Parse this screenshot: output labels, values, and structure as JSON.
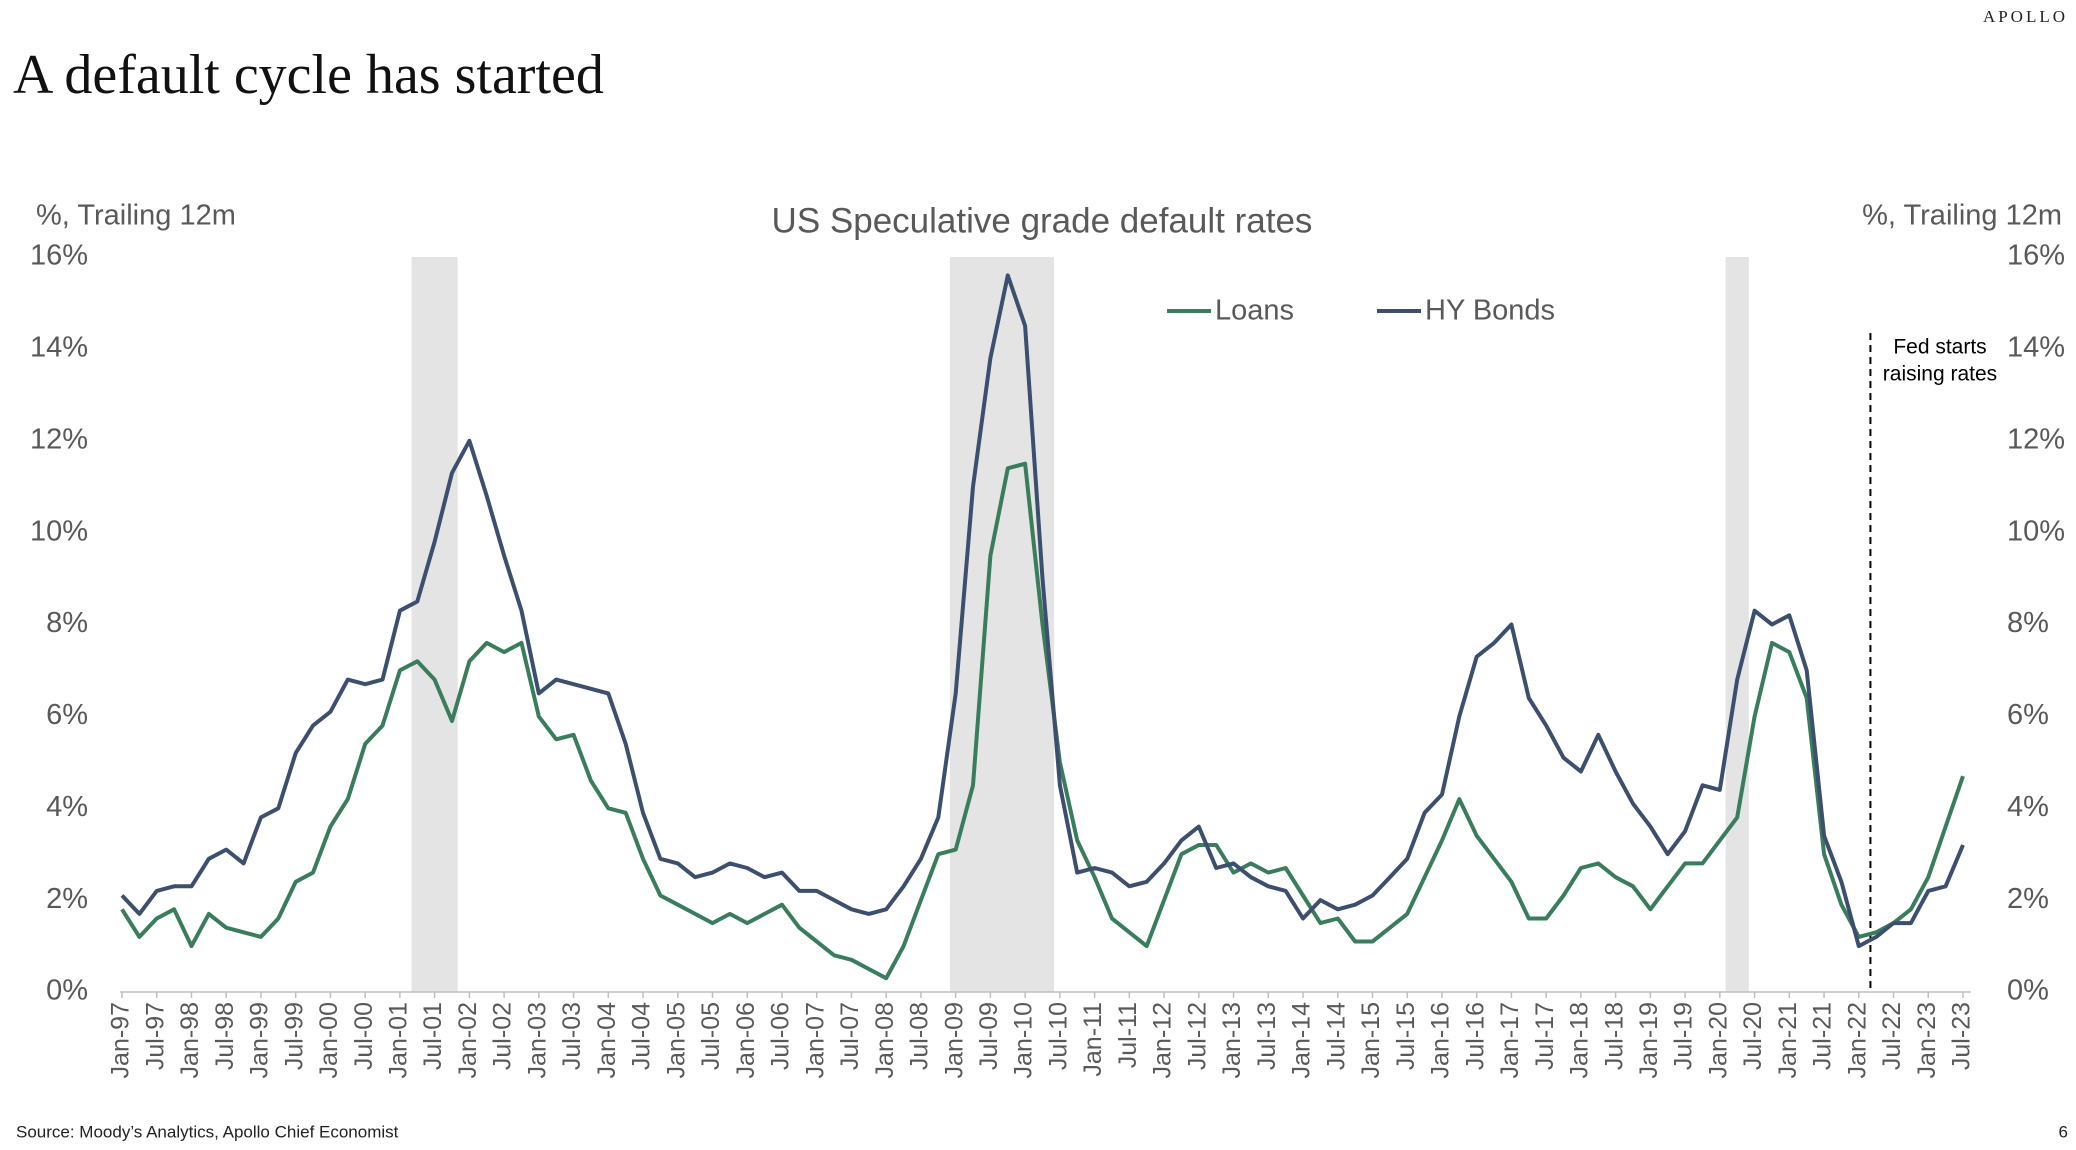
{
  "brand": "APOLLO",
  "headline": "A default cycle has started",
  "source": "Source: Moody’s Analytics, Apollo Chief Economist",
  "page_number": "6",
  "chart_data": {
    "type": "line",
    "title": "US Speculative grade default rates",
    "ylabel": "%, Trailing 12m",
    "y2label": "%, Trailing 12m",
    "categories": [
      "Jan-97",
      null,
      "Jul-97",
      null,
      "Jan-98",
      null,
      "Jul-98",
      null,
      "Jan-99",
      null,
      "Jul-99",
      null,
      "Jan-00",
      null,
      "Jul-00",
      null,
      "Jan-01",
      null,
      "Jul-01",
      null,
      "Jan-02",
      null,
      "Jul-02",
      null,
      "Jan-03",
      null,
      "Jul-03",
      null,
      "Jan-04",
      null,
      "Jul-04",
      null,
      "Jan-05",
      null,
      "Jul-05",
      null,
      "Jan-06",
      null,
      "Jul-06",
      null,
      "Jan-07",
      null,
      "Jul-07",
      null,
      "Jan-08",
      null,
      "Jul-08",
      null,
      "Jan-09",
      null,
      "Jul-09",
      null,
      "Jan-10",
      null,
      "Jul-10",
      null,
      "Jan-11",
      null,
      "Jul-11",
      null,
      "Jan-12",
      null,
      "Jul-12",
      null,
      "Jan-13",
      null,
      "Jul-13",
      null,
      "Jan-14",
      null,
      "Jul-14",
      null,
      "Jan-15",
      null,
      "Jul-15",
      null,
      "Jan-16",
      null,
      "Jul-16",
      null,
      "Jan-17",
      null,
      "Jul-17",
      null,
      "Jan-18",
      null,
      "Jul-18",
      null,
      "Jan-19",
      null,
      "Jul-19",
      null,
      "Jan-20",
      null,
      "Jul-20",
      null,
      "Jan-21",
      null,
      "Jul-21",
      null,
      "Jan-22",
      null,
      "Jul-22",
      null,
      "Jan-23",
      null,
      "Jul-23"
    ],
    "series": [
      {
        "name": "Loans",
        "color": "#3a7d5c",
        "values": [
          1.8,
          1.2,
          1.6,
          1.8,
          1.0,
          1.7,
          1.4,
          1.3,
          1.2,
          1.6,
          2.4,
          2.6,
          3.6,
          4.2,
          5.4,
          5.8,
          7.0,
          7.2,
          6.8,
          5.9,
          7.2,
          7.6,
          7.4,
          7.6,
          6.0,
          5.5,
          5.6,
          4.6,
          4.0,
          3.9,
          2.9,
          2.1,
          1.9,
          1.7,
          1.5,
          1.7,
          1.5,
          1.7,
          1.9,
          1.4,
          1.1,
          0.8,
          0.7,
          0.5,
          0.3,
          1.0,
          2.0,
          3.0,
          3.1,
          4.5,
          9.5,
          11.4,
          11.5,
          8.0,
          5.0,
          3.3,
          2.5,
          1.6,
          1.3,
          1.0,
          2.0,
          3.0,
          3.2,
          3.2,
          2.6,
          2.8,
          2.6,
          2.7,
          2.1,
          1.5,
          1.6,
          1.1,
          1.1,
          1.4,
          1.7,
          2.5,
          3.3,
          4.2,
          3.4,
          2.9,
          2.4,
          1.6,
          1.6,
          2.1,
          2.7,
          2.8,
          2.5,
          2.3,
          1.8,
          2.3,
          2.8,
          2.8,
          3.3,
          3.8,
          6.0,
          7.6,
          7.4,
          6.4,
          3.0,
          1.9,
          1.2,
          1.3,
          1.5,
          1.8,
          2.5,
          3.6,
          4.7
        ]
      },
      {
        "name": "HY Bonds",
        "color": "#3d4f6e",
        "values": [
          2.1,
          1.7,
          2.2,
          2.3,
          2.3,
          2.9,
          3.1,
          2.8,
          3.8,
          4.0,
          5.2,
          5.8,
          6.1,
          6.8,
          6.7,
          6.8,
          8.3,
          8.5,
          9.8,
          11.3,
          12.0,
          10.8,
          9.5,
          8.3,
          6.5,
          6.8,
          6.7,
          6.6,
          6.5,
          5.4,
          3.9,
          2.9,
          2.8,
          2.5,
          2.6,
          2.8,
          2.7,
          2.5,
          2.6,
          2.2,
          2.2,
          2.0,
          1.8,
          1.7,
          1.8,
          2.3,
          2.9,
          3.8,
          6.5,
          11.0,
          13.8,
          15.6,
          14.5,
          9.0,
          4.5,
          2.6,
          2.7,
          2.6,
          2.3,
          2.4,
          2.8,
          3.3,
          3.6,
          2.7,
          2.8,
          2.5,
          2.3,
          2.2,
          1.6,
          2.0,
          1.8,
          1.9,
          2.1,
          2.5,
          2.9,
          3.9,
          4.3,
          6.0,
          7.3,
          7.6,
          8.0,
          6.4,
          5.8,
          5.1,
          4.8,
          5.6,
          4.8,
          4.1,
          3.6,
          3.0,
          3.5,
          4.5,
          4.4,
          6.8,
          8.3,
          8.0,
          8.2,
          7.0,
          3.4,
          2.4,
          1.0,
          1.2,
          1.5,
          1.5,
          2.2,
          2.3,
          3.2
        ]
      }
    ],
    "ylim": [
      0,
      16
    ],
    "yticks": [
      {
        "value": 0,
        "label": "0%"
      },
      {
        "value": 2,
        "label": "2%"
      },
      {
        "value": 4,
        "label": "4%"
      },
      {
        "value": 6,
        "label": "6%"
      },
      {
        "value": 8,
        "label": "8%"
      },
      {
        "value": 10,
        "label": "10%"
      },
      {
        "value": 12,
        "label": "12%"
      },
      {
        "value": 14,
        "label": "14%"
      },
      {
        "value": 16,
        "label": "16%"
      }
    ],
    "y2lim": [
      0,
      16
    ],
    "y2ticks": [
      {
        "value": 0,
        "label": "0%"
      },
      {
        "value": 2,
        "label": "2%"
      },
      {
        "value": 4,
        "label": "4%"
      },
      {
        "value": 6,
        "label": "6%"
      },
      {
        "value": 8,
        "label": "8%"
      },
      {
        "value": 10,
        "label": "10%"
      },
      {
        "value": 12,
        "label": "12%"
      },
      {
        "value": 14,
        "label": "14%"
      },
      {
        "value": 16,
        "label": "16%"
      }
    ],
    "annotation": [
      "Fed starts",
      "raising rates"
    ],
    "legend": "top"
  }
}
